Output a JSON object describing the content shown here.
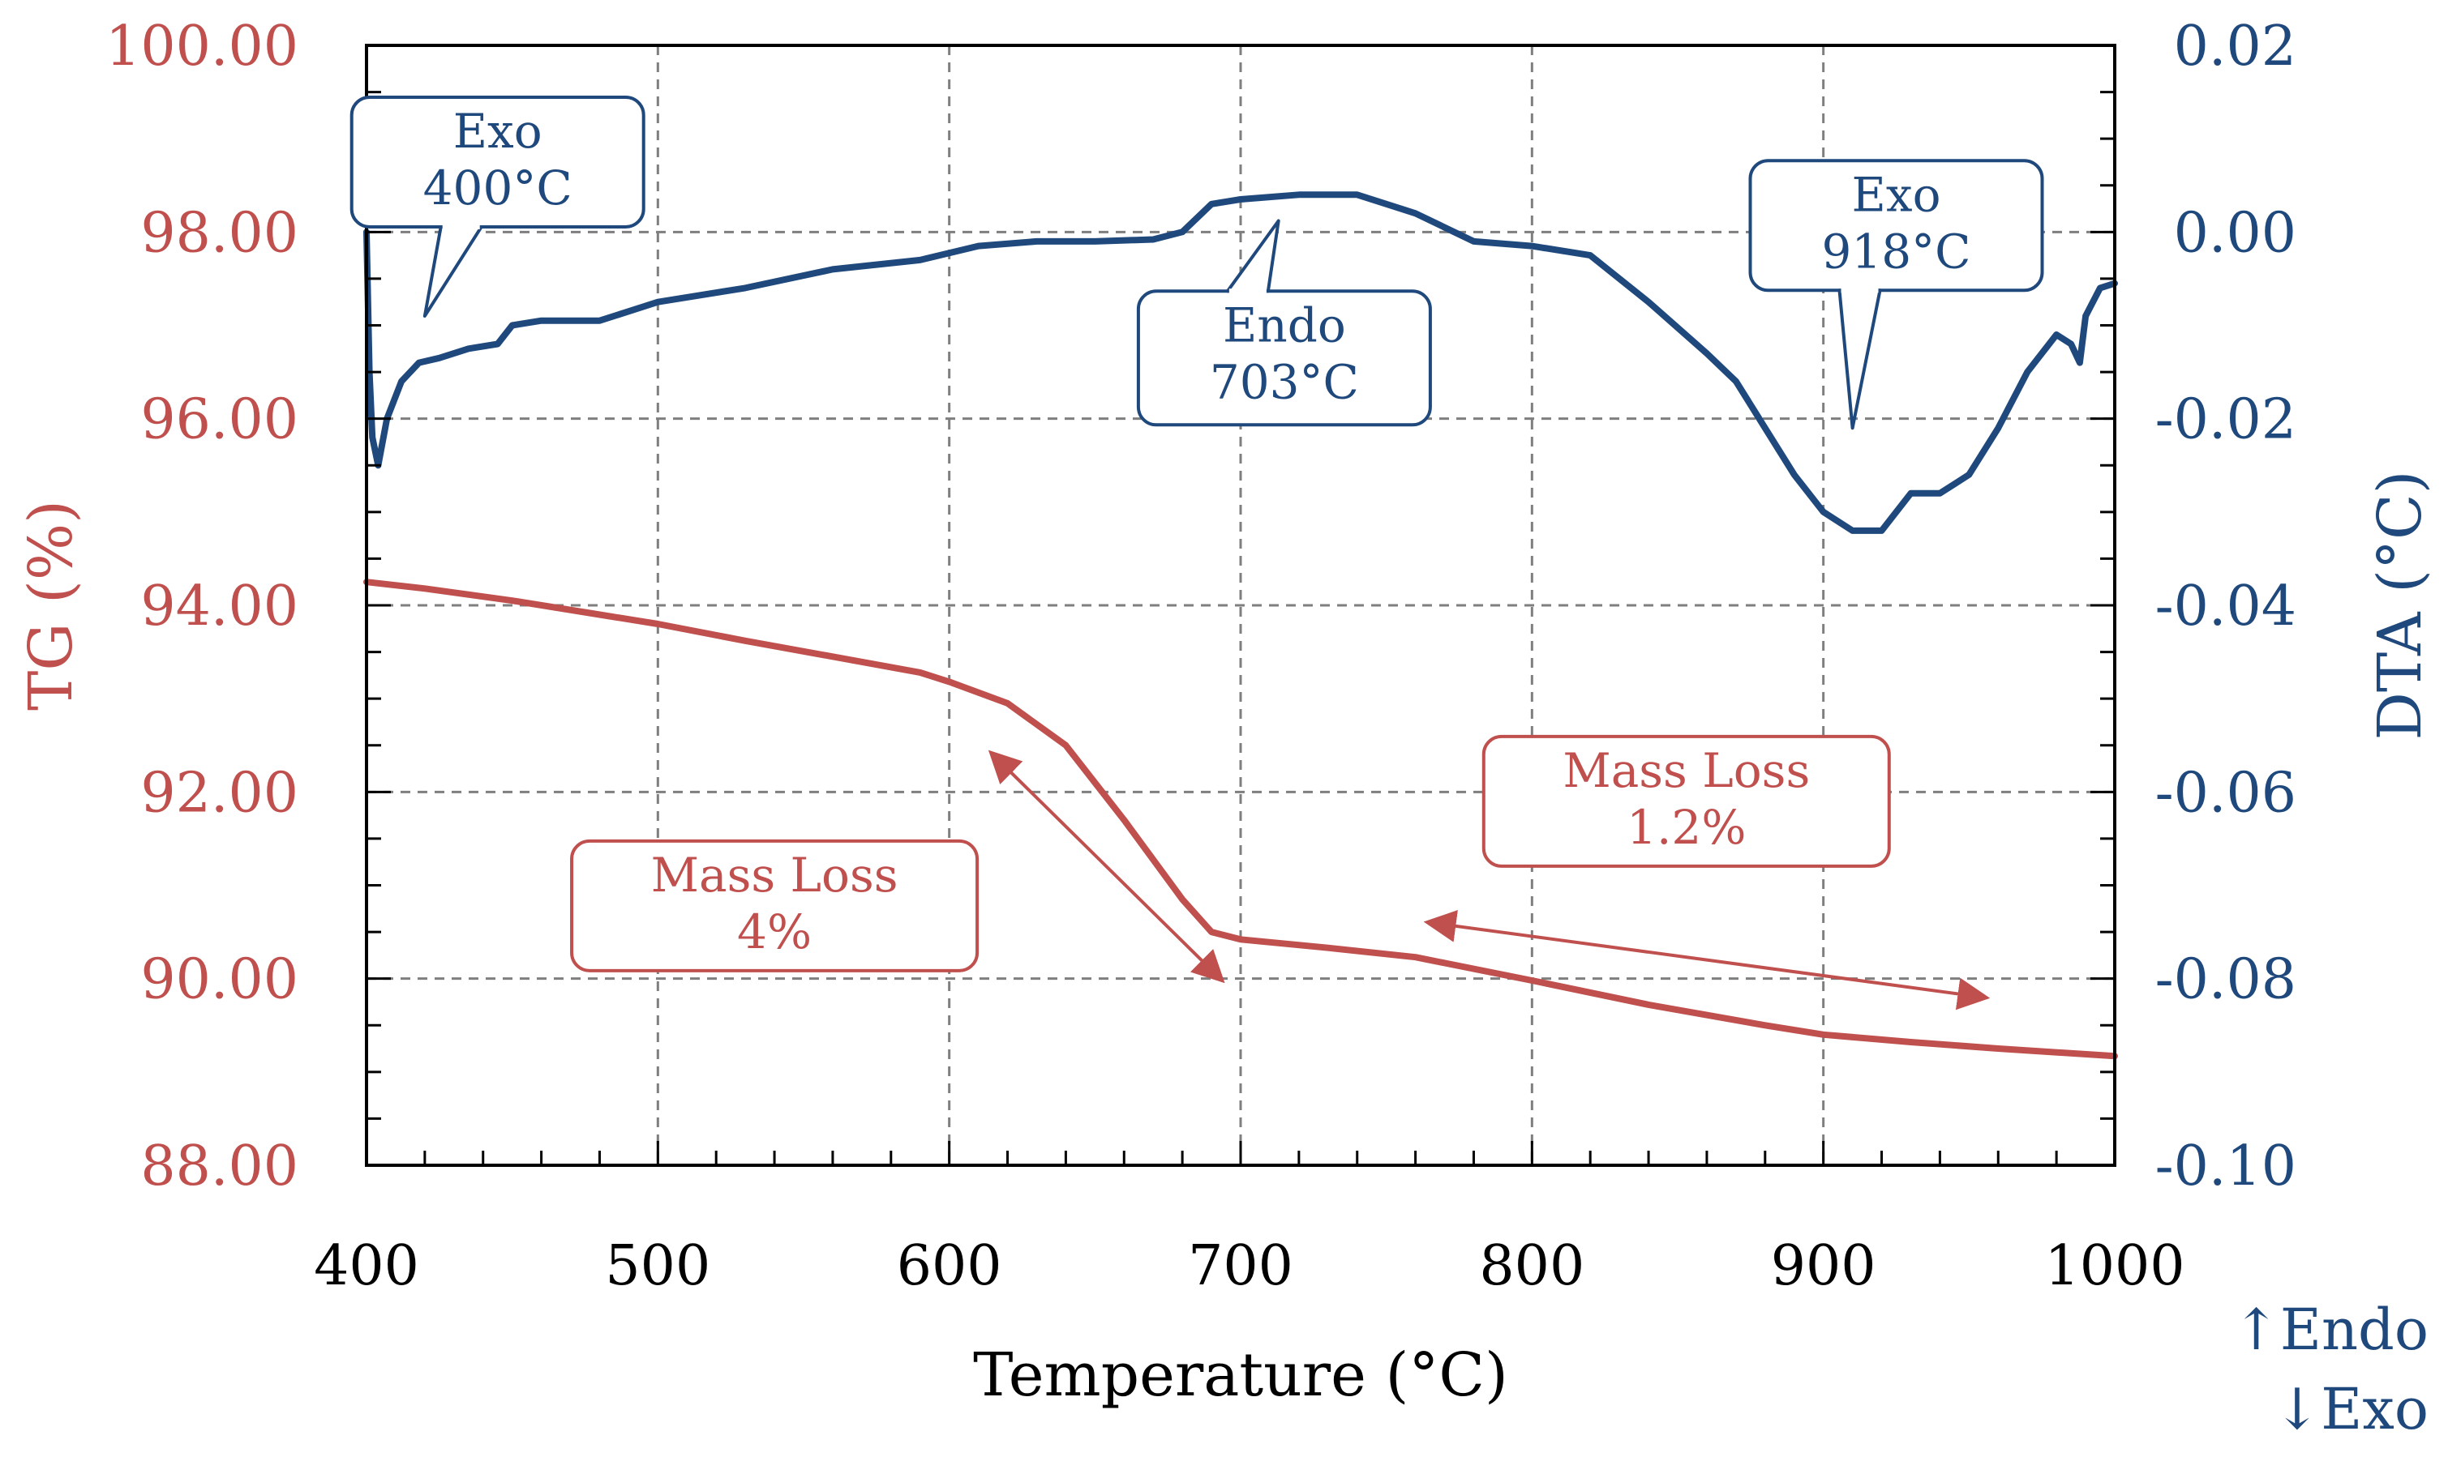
{
  "chart_data": {
    "type": "line",
    "title": "",
    "xlabel": "Temperature (°C)",
    "ylabel_left": "TG (%)",
    "ylabel_right": "DTA (°C)",
    "xlim": [
      400,
      1000
    ],
    "ylim_left": [
      88.0,
      100.0
    ],
    "ylim_right": [
      -0.1,
      0.02
    ],
    "x_ticks": [
      "400",
      "500",
      "600",
      "700",
      "800",
      "900",
      "1000"
    ],
    "y_left_ticks": [
      "100.00",
      "98.00",
      "96.00",
      "94.00",
      "92.00",
      "90.00",
      "88.00"
    ],
    "y_right_ticks": [
      "0.02",
      "0.00",
      "-0.02",
      "-0.04",
      "-0.06",
      "-0.08",
      "-0.10"
    ],
    "grid": true,
    "legend_note": [
      "↑Endo",
      "↓Exo"
    ],
    "colors": {
      "tg": "#c0504d",
      "dta": "#1f497d",
      "axis": "#000000",
      "grid": "#7f7f7f"
    },
    "series": [
      {
        "name": "TG",
        "axis": "left",
        "x": [
          400,
          420,
          450,
          480,
          500,
          530,
          560,
          590,
          600,
          620,
          640,
          660,
          680,
          690,
          700,
          730,
          760,
          800,
          840,
          880,
          900,
          930,
          960,
          1000
        ],
        "y": [
          94.25,
          94.18,
          94.05,
          93.9,
          93.8,
          93.62,
          93.45,
          93.28,
          93.18,
          92.95,
          92.5,
          91.7,
          90.85,
          90.5,
          90.42,
          90.33,
          90.23,
          89.98,
          89.72,
          89.5,
          89.4,
          89.32,
          89.25,
          89.17
        ]
      },
      {
        "name": "DTA",
        "axis": "right",
        "x": [
          400,
          401,
          402,
          404,
          407,
          412,
          418,
          425,
          435,
          445,
          450,
          460,
          480,
          500,
          530,
          560,
          590,
          610,
          630,
          650,
          670,
          680,
          690,
          700,
          720,
          740,
          760,
          780,
          800,
          820,
          840,
          860,
          870,
          880,
          890,
          900,
          910,
          920,
          930,
          940,
          950,
          960,
          970,
          980,
          985,
          988,
          990,
          995,
          1000
        ],
        "y": [
          0.0,
          -0.015,
          -0.022,
          -0.025,
          -0.02,
          -0.016,
          -0.014,
          -0.0135,
          -0.0125,
          -0.012,
          -0.01,
          -0.0095,
          -0.0095,
          -0.0075,
          -0.006,
          -0.004,
          -0.003,
          -0.0015,
          -0.001,
          -0.001,
          -0.0008,
          0.0,
          0.003,
          0.0035,
          0.004,
          0.004,
          0.002,
          -0.001,
          -0.0015,
          -0.0025,
          -0.0075,
          -0.013,
          -0.016,
          -0.021,
          -0.026,
          -0.03,
          -0.032,
          -0.032,
          -0.028,
          -0.028,
          -0.026,
          -0.021,
          -0.015,
          -0.011,
          -0.012,
          -0.014,
          -0.009,
          -0.006,
          -0.0055
        ]
      }
    ],
    "annotations": [
      {
        "name": "exo-400",
        "lines": [
          "Exo",
          "400°C"
        ],
        "color": "#1f497d"
      },
      {
        "name": "endo-703",
        "lines": [
          "Endo",
          "703°C"
        ],
        "color": "#1f497d"
      },
      {
        "name": "exo-918",
        "lines": [
          "Exo",
          "918°C"
        ],
        "color": "#1f497d"
      },
      {
        "name": "mass-loss-4",
        "lines": [
          "Mass Loss",
          "4%"
        ],
        "color": "#c0504d"
      },
      {
        "name": "mass-loss-1-2",
        "lines": [
          "Mass Loss",
          "1.2%"
        ],
        "color": "#c0504d"
      }
    ]
  }
}
